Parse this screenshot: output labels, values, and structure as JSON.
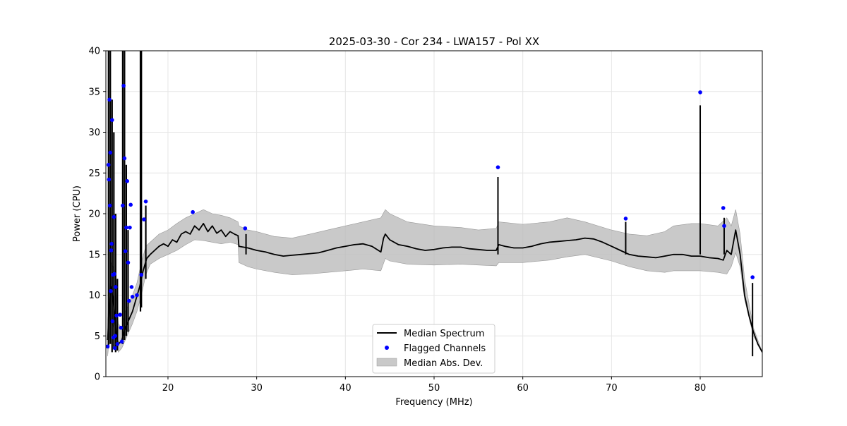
{
  "chart_data": {
    "type": "line",
    "title": "2025-03-30 - Cor 234 - LWA157 - Pol XX",
    "xlabel": "Frequency (MHz)",
    "ylabel": "Power (CPU)",
    "xlim": [
      13,
      87
    ],
    "ylim": [
      0,
      40
    ],
    "xticks": [
      20,
      30,
      40,
      50,
      60,
      70,
      80
    ],
    "yticks": [
      0,
      5,
      10,
      15,
      20,
      25,
      30,
      35,
      40
    ],
    "grid": true,
    "legend_position": "bottom-center",
    "legend": [
      {
        "label": "Median Spectrum",
        "kind": "line",
        "color": "#000000"
      },
      {
        "label": "Flagged Channels",
        "kind": "point",
        "color": "#0000ff"
      },
      {
        "label": "Median Abs. Dev.",
        "kind": "band",
        "color": "#bbbbbb"
      }
    ],
    "series": [
      {
        "name": "Median Spectrum",
        "x": [
          13.2,
          13.4,
          13.6,
          13.8,
          14.0,
          14.2,
          14.4,
          14.6,
          14.8,
          15.0,
          15.2,
          15.4,
          15.6,
          15.8,
          16.0,
          16.4,
          16.8,
          17.2,
          17.6,
          18.0,
          18.5,
          19.0,
          19.5,
          20.0,
          20.5,
          21.0,
          21.5,
          22.0,
          22.5,
          23.0,
          23.5,
          24.0,
          24.5,
          25.0,
          25.5,
          26.0,
          26.5,
          27.0,
          27.5,
          27.9,
          28.0,
          29.0,
          30.0,
          31.0,
          32.0,
          33.0,
          34.0,
          35.0,
          36.0,
          37.0,
          38.0,
          39.0,
          40.0,
          41.0,
          42.0,
          43.0,
          44.0,
          44.3,
          44.5,
          45.0,
          46.0,
          47.0,
          48.0,
          49.0,
          50.0,
          51.0,
          52.0,
          53.0,
          54.0,
          55.0,
          56.0,
          57.0,
          57.3,
          58.0,
          59.0,
          60.0,
          61.0,
          62.0,
          63.0,
          64.0,
          65.0,
          66.0,
          67.0,
          68.0,
          69.0,
          70.0,
          71.0,
          72.0,
          73.0,
          74.0,
          75.0,
          76.0,
          77.0,
          78.0,
          79.0,
          80.0,
          81.0,
          82.0,
          82.6,
          83.0,
          83.5,
          84.0,
          84.5,
          85.0,
          85.5,
          86.0,
          86.5,
          87.0
        ],
        "y": [
          4.5,
          8.5,
          11.0,
          9.5,
          7.5,
          5.0,
          4.0,
          4.2,
          4.5,
          5.2,
          6.0,
          6.5,
          7.0,
          7.5,
          8.0,
          9.5,
          11.0,
          13.0,
          14.5,
          15.0,
          15.5,
          16.0,
          16.3,
          16.0,
          16.8,
          16.5,
          17.5,
          17.8,
          17.5,
          18.5,
          18.0,
          18.8,
          17.8,
          18.5,
          17.6,
          18.0,
          17.2,
          17.8,
          17.5,
          17.3,
          16.0,
          15.8,
          15.5,
          15.3,
          15.0,
          14.8,
          14.9,
          15.0,
          15.1,
          15.2,
          15.5,
          15.8,
          16.0,
          16.2,
          16.3,
          16.0,
          15.3,
          17.0,
          17.5,
          16.8,
          16.2,
          16.0,
          15.7,
          15.5,
          15.6,
          15.8,
          15.9,
          15.9,
          15.7,
          15.6,
          15.5,
          15.5,
          16.2,
          16.0,
          15.8,
          15.8,
          16.0,
          16.3,
          16.5,
          16.6,
          16.7,
          16.8,
          17.0,
          16.9,
          16.5,
          16.0,
          15.5,
          15.0,
          14.8,
          14.7,
          14.6,
          14.8,
          15.0,
          15.0,
          14.8,
          14.8,
          14.6,
          14.5,
          14.3,
          15.5,
          15.0,
          18.0,
          15.0,
          10.0,
          7.5,
          5.5,
          4.0,
          3.0
        ]
      }
    ],
    "mad_band": {
      "x": [
        13.2,
        13.6,
        14.0,
        14.4,
        14.8,
        15.2,
        15.6,
        16.0,
        16.5,
        17.0,
        17.5,
        18.0,
        19.0,
        20.0,
        21.0,
        22.0,
        23.0,
        24.0,
        25.0,
        26.0,
        27.0,
        27.9,
        28.0,
        29.0,
        30.0,
        32.0,
        34.0,
        36.0,
        38.0,
        40.0,
        42.0,
        44.0,
        44.5,
        45.0,
        47.0,
        50.0,
        53.0,
        55.0,
        57.0,
        57.3,
        60.0,
        63.0,
        65.0,
        67.0,
        70.0,
        72.0,
        74.0,
        76.0,
        77.0,
        79.0,
        80.0,
        82.0,
        83.0,
        83.5,
        84.0,
        84.5,
        85.0,
        86.0,
        87.0
      ],
      "lower": [
        2.5,
        7.0,
        5.5,
        3.0,
        3.5,
        4.5,
        5.5,
        6.5,
        8.0,
        10.0,
        12.5,
        13.8,
        14.5,
        15.0,
        15.5,
        16.2,
        16.8,
        16.7,
        16.5,
        16.3,
        16.5,
        16.2,
        14.0,
        13.5,
        13.2,
        12.8,
        12.5,
        12.6,
        12.8,
        13.0,
        13.2,
        13.0,
        14.5,
        14.2,
        13.8,
        13.7,
        13.8,
        13.7,
        13.6,
        14.0,
        14.0,
        14.3,
        14.7,
        15.0,
        14.2,
        13.5,
        13.0,
        12.8,
        13.0,
        13.0,
        13.0,
        12.8,
        12.6,
        13.5,
        15.2,
        13.5,
        9.5,
        5.0,
        3.0
      ],
      "upper": [
        7.0,
        14.0,
        13.0,
        6.5,
        6.0,
        8.0,
        9.0,
        10.0,
        11.5,
        14.0,
        16.0,
        16.5,
        17.5,
        18.0,
        18.8,
        19.5,
        20.0,
        20.5,
        20.0,
        19.8,
        19.5,
        19.0,
        18.5,
        18.0,
        17.8,
        17.2,
        17.0,
        17.5,
        18.0,
        18.5,
        19.0,
        19.5,
        20.5,
        20.0,
        19.0,
        18.5,
        18.3,
        18.0,
        18.2,
        19.0,
        18.7,
        19.0,
        19.5,
        19.0,
        18.0,
        17.5,
        17.3,
        17.8,
        18.5,
        18.8,
        18.8,
        18.5,
        19.5,
        18.5,
        20.5,
        17.5,
        12.0,
        6.0,
        3.0
      ]
    },
    "spikes": [
      {
        "x": 28.8,
        "top": 17.5
      },
      {
        "x": 57.2,
        "top": 24.5
      },
      {
        "x": 71.6,
        "top": 19.0
      },
      {
        "x": 80.0,
        "top": 33.3
      },
      {
        "x": 82.7,
        "top": 19.5
      },
      {
        "x": 85.9,
        "top": 11.5
      }
    ],
    "low_freq_spikes": [
      {
        "x": 13.3,
        "top": 40.0,
        "bottom": 3.5
      },
      {
        "x": 13.5,
        "top": 40.0,
        "bottom": 4.0
      },
      {
        "x": 13.7,
        "top": 34.0,
        "bottom": 3.0
      },
      {
        "x": 13.9,
        "top": 30.0,
        "bottom": 3.5
      },
      {
        "x": 14.1,
        "top": 20.0,
        "bottom": 3.0
      },
      {
        "x": 14.3,
        "top": 12.0,
        "bottom": 3.2
      },
      {
        "x": 14.9,
        "top": 40.0,
        "bottom": 4.0
      },
      {
        "x": 15.1,
        "top": 40.0,
        "bottom": 4.5
      },
      {
        "x": 15.3,
        "top": 26.0,
        "bottom": 5.0
      },
      {
        "x": 15.5,
        "top": 18.0,
        "bottom": 5.5
      },
      {
        "x": 16.9,
        "top": 40.0,
        "bottom": 8.0
      },
      {
        "x": 17.0,
        "top": 40.0,
        "bottom": 8.5
      },
      {
        "x": 17.5,
        "top": 21.0,
        "bottom": 12.0
      }
    ],
    "flagged_channels": {
      "x": [
        13.2,
        13.3,
        13.4,
        13.5,
        13.6,
        13.7,
        13.8,
        13.9,
        14.0,
        14.1,
        14.2,
        14.3,
        13.35,
        13.45,
        13.55,
        13.65,
        13.75,
        13.85,
        13.95,
        14.05,
        14.6,
        14.7,
        14.8,
        14.9,
        15.0,
        15.1,
        15.2,
        15.3,
        15.4,
        15.5,
        15.6,
        15.7,
        15.8,
        15.9,
        16.0,
        16.5,
        17.0,
        17.3,
        17.5,
        22.8,
        28.7,
        57.2,
        71.6,
        80.0,
        82.6,
        82.7,
        85.9
      ],
      "y": [
        3.7,
        26.0,
        34.0,
        27.5,
        15.5,
        31.5,
        12.5,
        19.6,
        3.5,
        11.0,
        7.5,
        4.0,
        24.2,
        21.0,
        10.5,
        16.3,
        6.8,
        4.8,
        12.6,
        5.0,
        7.6,
        6.0,
        4.3,
        21.0,
        35.7,
        26.8,
        15.4,
        18.3,
        24.0,
        14.0,
        9.3,
        18.3,
        21.1,
        11.0,
        9.8,
        10.0,
        12.5,
        19.3,
        21.5,
        20.2,
        18.2,
        25.7,
        19.4,
        34.9,
        20.7,
        18.5,
        12.2
      ]
    }
  }
}
